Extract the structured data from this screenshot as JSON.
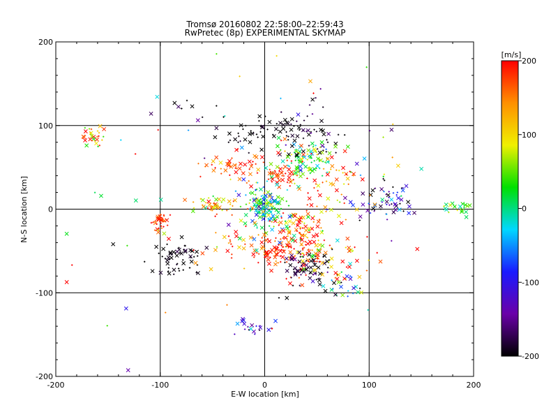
{
  "chart_data": {
    "type": "scatter",
    "title": "Tromsø 20160802 22:58:00–22:59:43",
    "subtitle": "RwPretec (8p) EXPERIMENTAL SKYMAP",
    "xlabel": "E-W location [km]",
    "ylabel": "N-S location [km]",
    "xlim": [
      -200,
      200
    ],
    "ylim": [
      -200,
      200
    ],
    "xticks": [
      "-200",
      "-100",
      "0",
      "100",
      "200"
    ],
    "yticks": [
      "-200",
      "-100",
      "0",
      "100",
      "200"
    ],
    "grid": true,
    "colorbar": {
      "label": "[m/s]",
      "min": -200,
      "max": 200,
      "ticks": [
        "-200",
        "-100",
        "0",
        "100",
        "200"
      ],
      "stops": [
        "#000000",
        "#6a00a8",
        "#1a1aff",
        "#00d8ff",
        "#00e000",
        "#f0f000",
        "#ff9000",
        "#ff0000"
      ]
    },
    "markers": {
      "cross": "x",
      "dot": "+"
    },
    "clusters": [
      {
        "x": 0,
        "y": 5,
        "sx": 10,
        "sy": 12,
        "n": 140,
        "v": 0,
        "vs": 60
      },
      {
        "x": 40,
        "y": 60,
        "sx": 12,
        "sy": 12,
        "n": 90,
        "v": 20,
        "vs": 50
      },
      {
        "x": 15,
        "y": 40,
        "sx": 10,
        "sy": 6,
        "n": 40,
        "v": 190,
        "vs": 30
      },
      {
        "x": 30,
        "y": -40,
        "sx": 14,
        "sy": 18,
        "n": 130,
        "v": 170,
        "vs": 60
      },
      {
        "x": 5,
        "y": -50,
        "sx": 10,
        "sy": 8,
        "n": 40,
        "v": 200,
        "vs": 30
      },
      {
        "x": 40,
        "y": -70,
        "sx": 12,
        "sy": 10,
        "n": 70,
        "v": -190,
        "vs": 20
      },
      {
        "x": 10,
        "y": 90,
        "sx": 25,
        "sy": 12,
        "n": 70,
        "v": -200,
        "vs": 10
      },
      {
        "x": 45,
        "y": 100,
        "sx": 12,
        "sy": 20,
        "n": 30,
        "v": -180,
        "vs": 20
      },
      {
        "x": -25,
        "y": 50,
        "sx": 20,
        "sy": 10,
        "n": 50,
        "v": 180,
        "vs": 40
      },
      {
        "x": -50,
        "y": 5,
        "sx": 15,
        "sy": 6,
        "n": 40,
        "v": 110,
        "vs": 50
      },
      {
        "x": -100,
        "y": -15,
        "sx": 5,
        "sy": 7,
        "n": 35,
        "v": 185,
        "vs": 20
      },
      {
        "x": -85,
        "y": -60,
        "sx": 10,
        "sy": 12,
        "n": 55,
        "v": -200,
        "vs": 10
      },
      {
        "x": -165,
        "y": 85,
        "sx": 6,
        "sy": 6,
        "n": 30,
        "v": 110,
        "vs": 60
      },
      {
        "x": 115,
        "y": 10,
        "sx": 15,
        "sy": 12,
        "n": 60,
        "v": -140,
        "vs": 70
      },
      {
        "x": 185,
        "y": 0,
        "sx": 8,
        "sy": 4,
        "n": 25,
        "v": 30,
        "vs": 30
      },
      {
        "x": 65,
        "y": 40,
        "sx": 15,
        "sy": 15,
        "n": 40,
        "v": 160,
        "vs": 50
      },
      {
        "x": 70,
        "y": -60,
        "sx": 15,
        "sy": 10,
        "n": 35,
        "v": 150,
        "vs": 60
      },
      {
        "x": 75,
        "y": -90,
        "sx": 10,
        "sy": 10,
        "n": 25,
        "v": -60,
        "vs": 100
      },
      {
        "x": -15,
        "y": -140,
        "sx": 10,
        "sy": 5,
        "n": 20,
        "v": -120,
        "vs": 60
      },
      {
        "x": 20,
        "y": -20,
        "sx": 20,
        "sy": 15,
        "n": 60,
        "v": 80,
        "vs": 90
      },
      {
        "x": -30,
        "y": -40,
        "sx": 20,
        "sy": 15,
        "n": 30,
        "v": 170,
        "vs": 40
      },
      {
        "x": -75,
        "y": 120,
        "sx": 15,
        "sy": 10,
        "n": 10,
        "v": -190,
        "vs": 20
      },
      {
        "x": 0,
        "y": 0,
        "sx": 90,
        "sy": 80,
        "n": 110,
        "v": 60,
        "vs": 140
      }
    ]
  }
}
